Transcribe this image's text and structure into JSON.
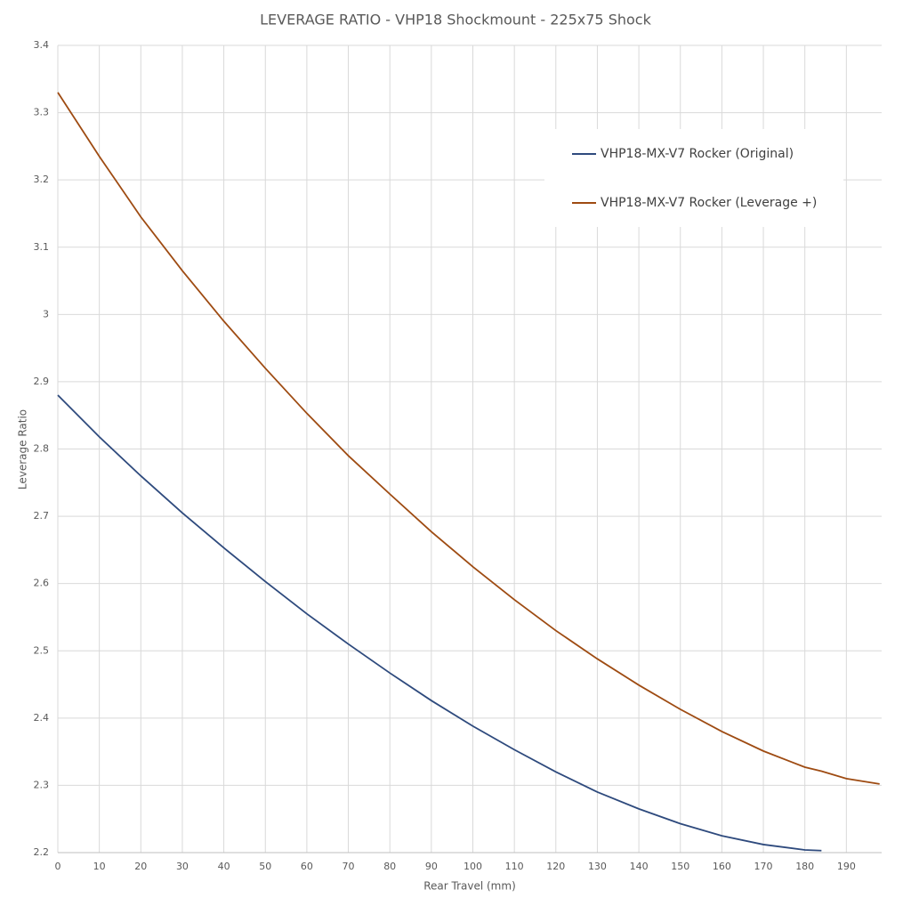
{
  "chart_data": {
    "type": "line",
    "title": "LEVERAGE RATIO - VHP18 Shockmount - 225x75 Shock",
    "x_label": "Rear Travel (mm)",
    "y_label": "Leverage Ratio",
    "x": [
      0,
      10,
      20,
      30,
      40,
      50,
      60,
      70,
      80,
      90,
      100,
      110,
      120,
      130,
      140,
      150,
      160,
      170,
      180,
      184,
      190,
      198
    ],
    "series": [
      {
        "name": "VHP18-MX-V7 Rocker (Original)",
        "color": "#2e4a7d",
        "values": [
          2.88,
          2.818,
          2.76,
          2.705,
          2.653,
          2.603,
          2.555,
          2.51,
          2.467,
          2.426,
          2.388,
          2.353,
          2.32,
          2.29,
          2.265,
          2.243,
          2.225,
          2.212,
          2.204,
          2.203,
          null,
          null
        ]
      },
      {
        "name": "VHP18-MX-V7 Rocker (Leverage +)",
        "color": "#9e4b12",
        "values": [
          3.33,
          3.235,
          3.145,
          3.065,
          2.99,
          2.92,
          2.853,
          2.79,
          2.733,
          2.677,
          2.625,
          2.576,
          2.53,
          2.488,
          2.449,
          2.413,
          2.38,
          2.351,
          2.327,
          2.321,
          2.31,
          2.302
        ]
      }
    ],
    "xlim": [
      0,
      198.5
    ],
    "xticks": [
      0,
      10,
      20,
      30,
      40,
      50,
      60,
      70,
      80,
      90,
      100,
      110,
      120,
      130,
      140,
      150,
      160,
      170,
      180,
      190
    ],
    "ylim": [
      2.2,
      3.4
    ],
    "yticks": [
      2.2,
      2.3,
      2.4,
      2.5,
      2.6,
      2.7,
      2.8,
      2.9,
      3,
      3.1,
      3.2,
      3.3,
      3.4
    ],
    "grid": true,
    "legend": "upper right"
  }
}
